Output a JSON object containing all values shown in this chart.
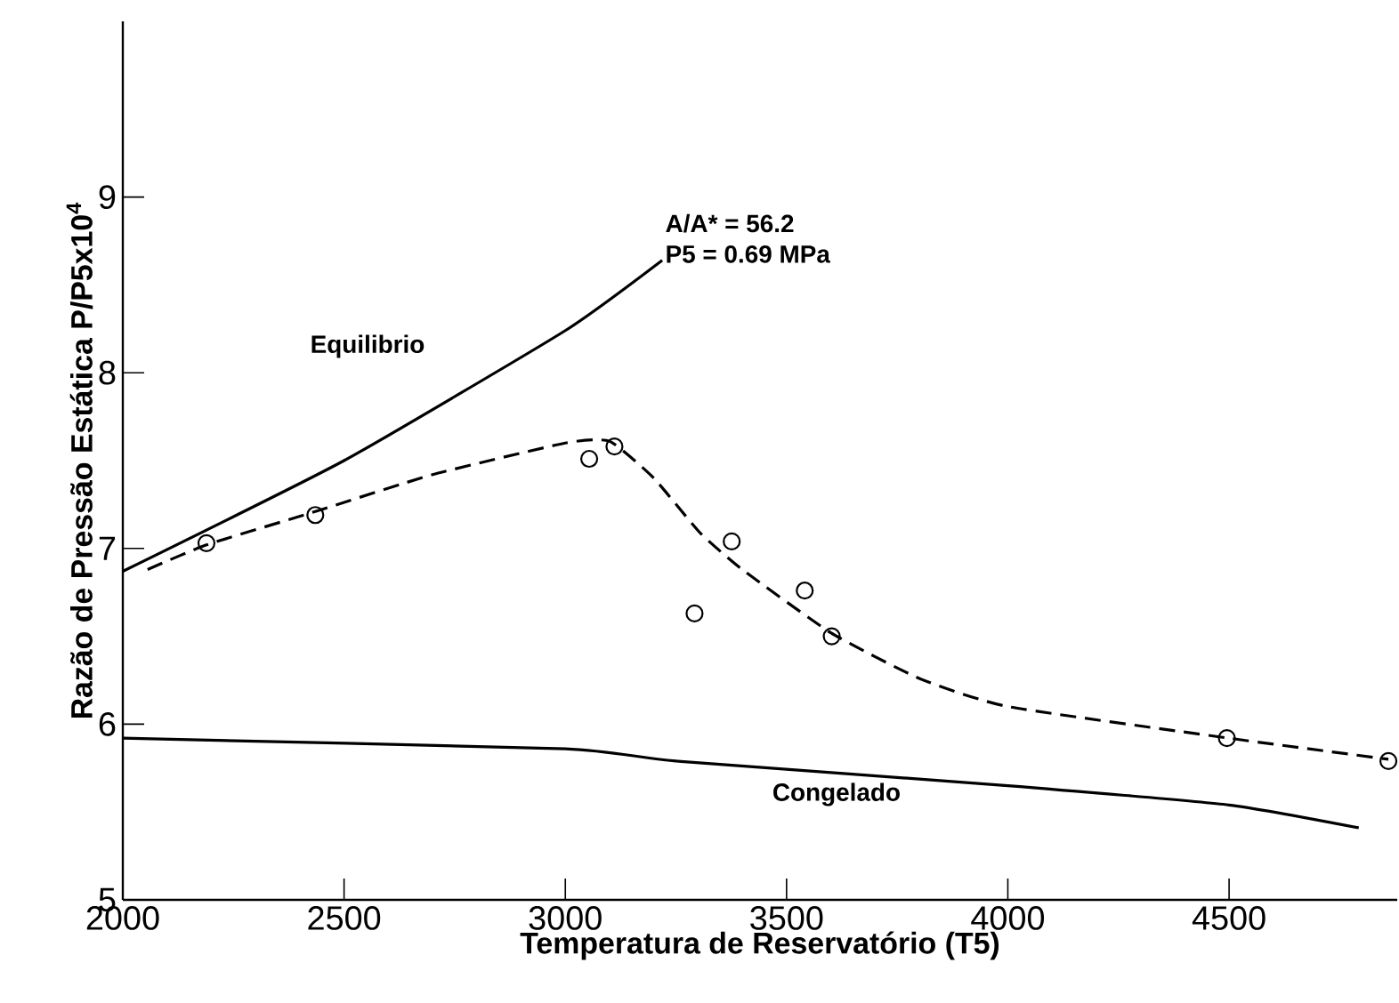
{
  "chart_data": {
    "type": "line",
    "xlabel": "Temperatura de Reservatório (T5)",
    "ylabel": "Razão de Pressão Estática P/P5x10$^{4}$",
    "xlim": [
      2000,
      4880
    ],
    "ylim": [
      5,
      10
    ],
    "xticks": [
      2000,
      2500,
      3000,
      3500,
      4000,
      4500
    ],
    "yticks": [
      5,
      6,
      7,
      8,
      9
    ],
    "series": [
      {
        "color": "#000000",
        "line_style": "solid",
        "marker": "none",
        "x": [
          2000,
          2500,
          3000,
          3219
        ],
        "values": [
          6.87,
          7.5,
          8.24,
          8.64
        ]
      },
      {
        "color": "#000000",
        "line_style": "solid",
        "marker": "none",
        "x": [
          2000,
          3000,
          3250,
          4000,
          4500,
          4793
        ],
        "values": [
          5.92,
          5.86,
          5.79,
          5.65,
          5.54,
          5.41
        ]
      },
      {
        "color": "#000000",
        "line_style": "dashed",
        "marker": "none",
        "x": [
          2056,
          2189,
          2435,
          2700,
          3000,
          3100,
          3200,
          3304,
          3400,
          3600,
          3800,
          4000,
          4500,
          4860
        ],
        "values": [
          6.88,
          7.02,
          7.21,
          7.42,
          7.6,
          7.61,
          7.4,
          7.09,
          6.88,
          6.52,
          6.26,
          6.1,
          5.92,
          5.8
        ]
      },
      {
        "type": "scatter",
        "color": "#000000",
        "marker": "circle",
        "x": [
          2189,
          2435,
          3054,
          3111,
          3292,
          3376,
          3541,
          3602,
          4495,
          4860
        ],
        "values": [
          7.03,
          7.19,
          7.51,
          7.58,
          6.63,
          7.04,
          6.76,
          6.5,
          5.92,
          5.79
        ]
      }
    ],
    "annotations": [
      "Equilibrio",
      "A/A* = 56.2",
      "P5 = 0.69 MPa",
      "Congelado"
    ]
  }
}
